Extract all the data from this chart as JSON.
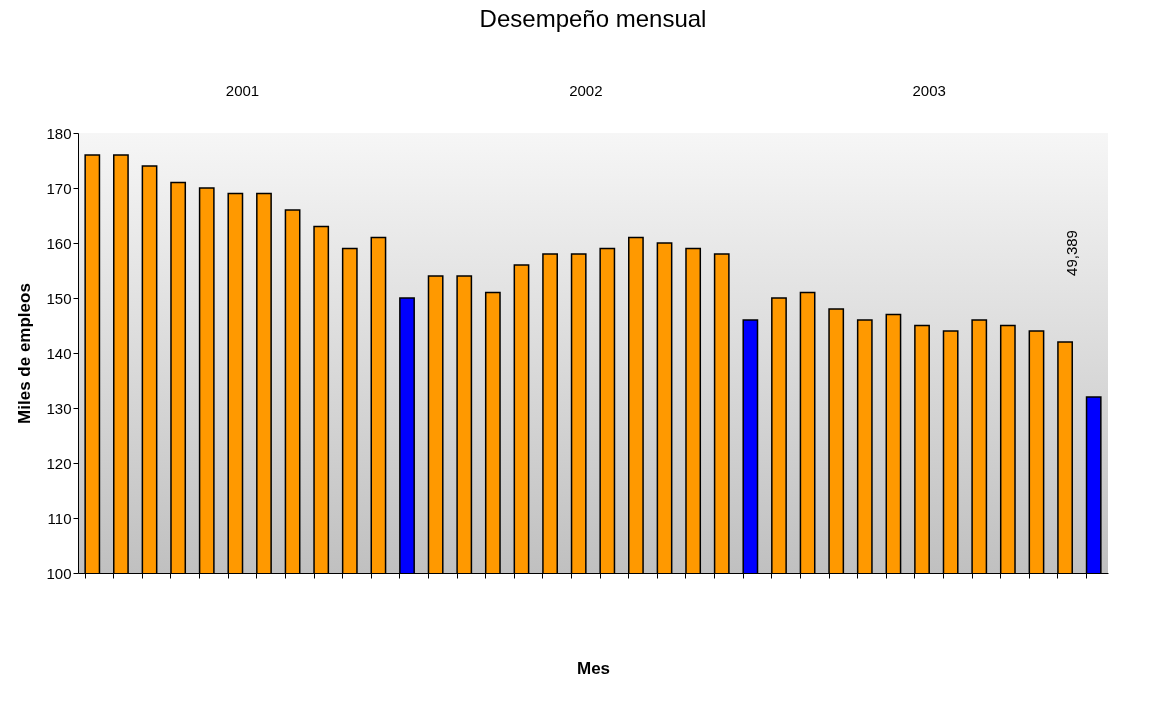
{
  "chart_data": {
    "type": "bar",
    "title": "Desempeño mensual",
    "xlabel": "Mes",
    "ylabel": "Miles de empleos",
    "categories": [
      null,
      null,
      null,
      null,
      null,
      null,
      null,
      null,
      null,
      null,
      null,
      null,
      null,
      null,
      null,
      null,
      null,
      null,
      null,
      null,
      null,
      null,
      null,
      null,
      null,
      null,
      null,
      null,
      null,
      null,
      null,
      null,
      null,
      null,
      null,
      null
    ],
    "values": [
      176,
      176,
      174,
      171,
      170,
      169,
      169,
      166,
      163,
      159,
      161,
      150,
      154,
      154,
      151,
      156,
      158,
      158,
      159,
      161,
      160,
      159,
      158,
      146,
      150,
      151,
      148,
      146,
      147,
      145,
      144,
      146,
      145,
      144,
      142,
      132
    ],
    "colors": [
      "#ff9900",
      "#ff9900",
      "#ff9900",
      "#ff9900",
      "#ff9900",
      "#ff9900",
      "#ff9900",
      "#ff9900",
      "#ff9900",
      "#ff9900",
      "#ff9900",
      "#0000ff",
      "#ff9900",
      "#ff9900",
      "#ff9900",
      "#ff9900",
      "#ff9900",
      "#ff9900",
      "#ff9900",
      "#ff9900",
      "#ff9900",
      "#ff9900",
      "#ff9900",
      "#0000ff",
      "#ff9900",
      "#ff9900",
      "#ff9900",
      "#ff9900",
      "#ff9900",
      "#ff9900",
      "#ff9900",
      "#ff9900",
      "#ff9900",
      "#ff9900",
      "#ff9900",
      "#0000ff"
    ],
    "ylim": [
      100,
      180
    ],
    "yticks": [
      100,
      110,
      120,
      130,
      140,
      150,
      160,
      170,
      180
    ],
    "grid": false,
    "annotations": [
      "2001",
      "2002",
      "2003",
      "49,389"
    ]
  }
}
